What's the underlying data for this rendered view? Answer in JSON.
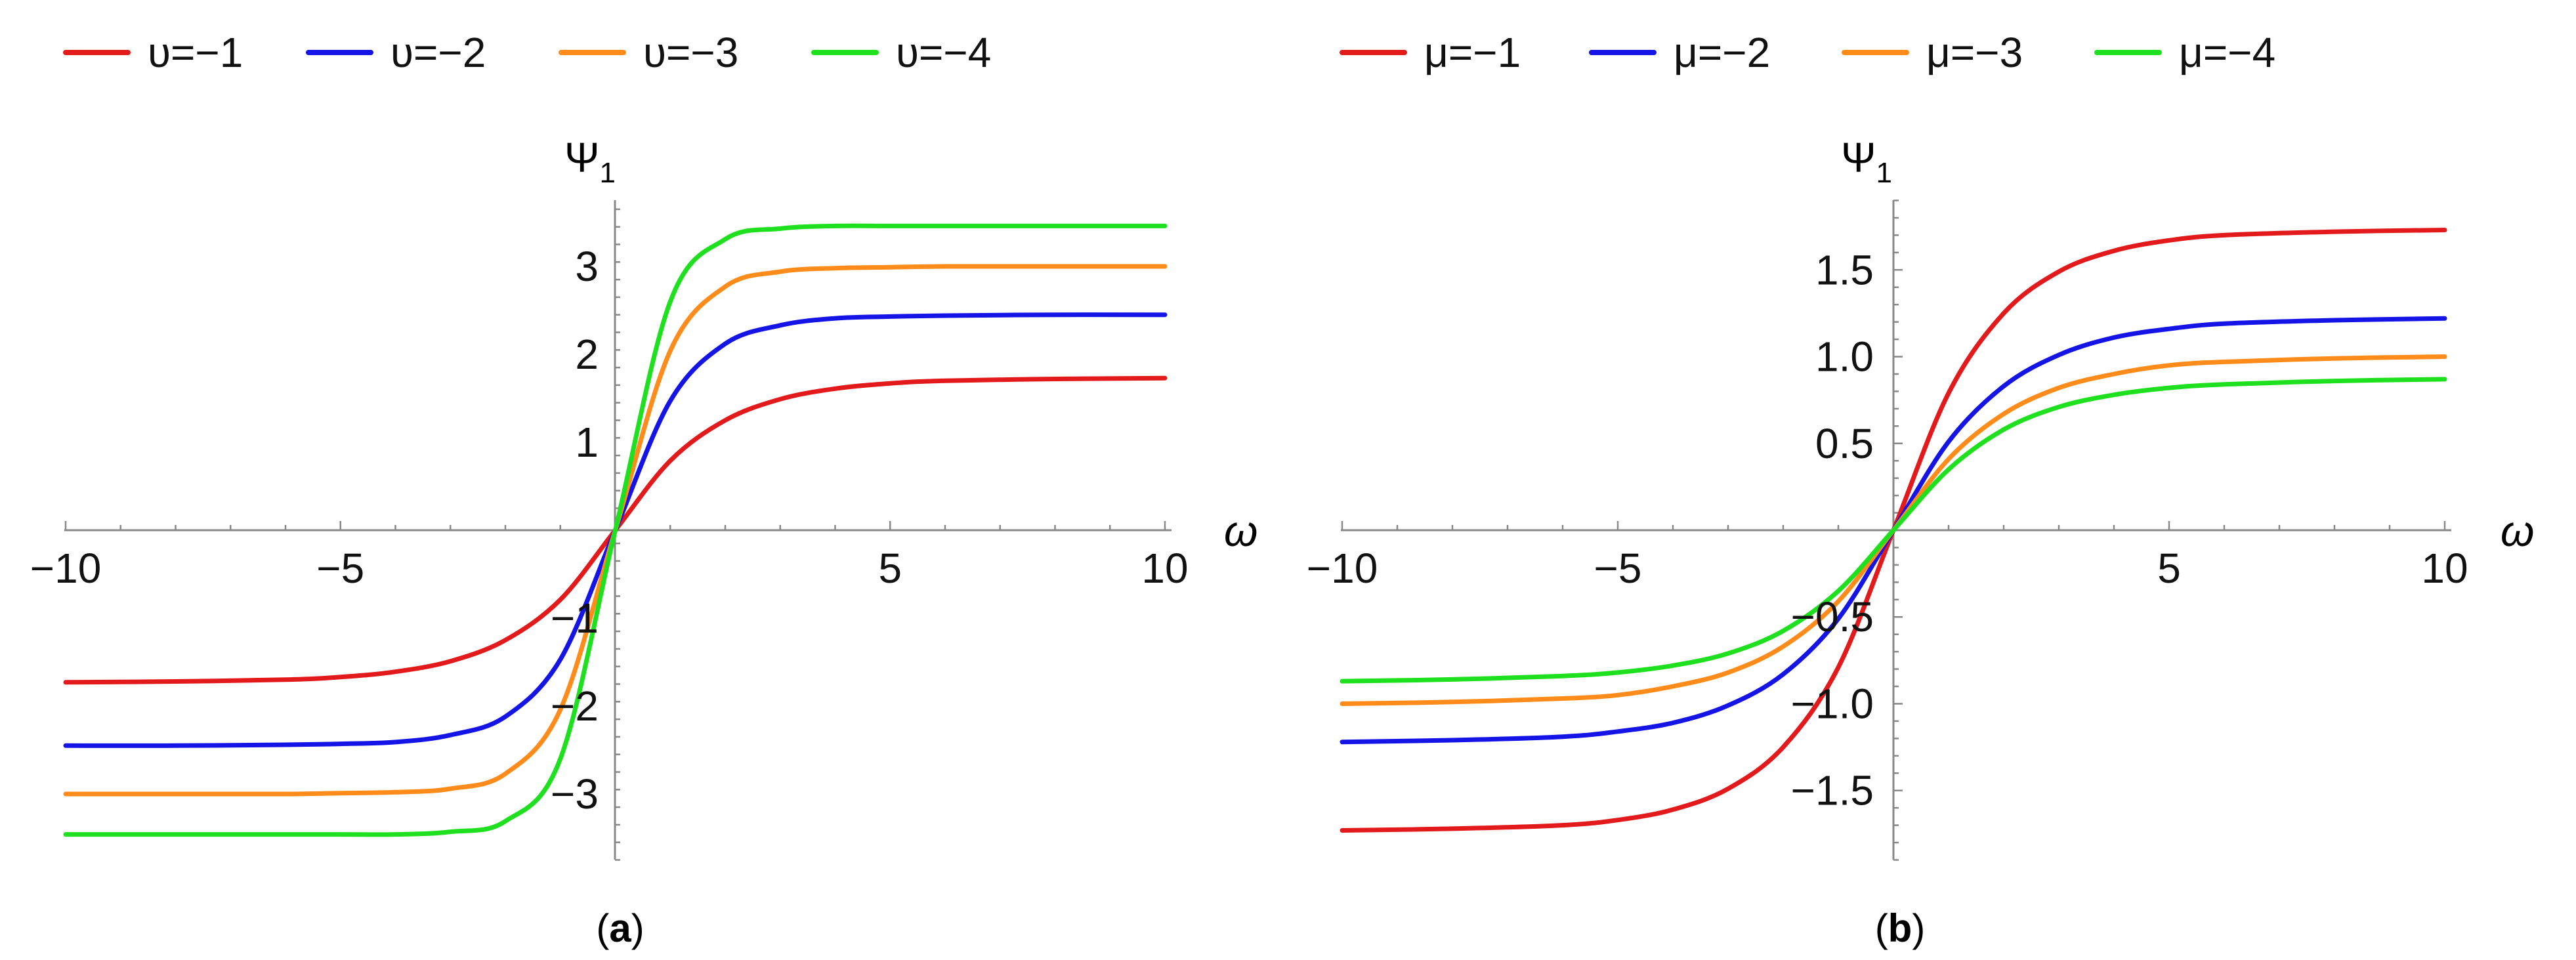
{
  "chart_data": [
    {
      "type": "line",
      "panel_label": "a",
      "legend_placement": "top",
      "xlabel": "ω",
      "ylabel": "Ψ",
      "ylabel_sub": "1",
      "xlim": [
        -10,
        10
      ],
      "ylim": [
        -3.75,
        3.75
      ],
      "xticks": [
        -10,
        -5,
        5,
        10
      ],
      "xtick_labels": [
        "−10",
        "−5",
        "5",
        "10"
      ],
      "yticks": [
        -3,
        -2,
        -1,
        1,
        2,
        3
      ],
      "ytick_labels": [
        "−3",
        "−2",
        "−1",
        "1",
        "2",
        "3"
      ],
      "grid": false,
      "x": [
        -10,
        -8,
        -6,
        -5,
        -4,
        -3,
        -2,
        -1,
        0,
        1,
        2,
        3,
        4,
        5,
        6,
        8,
        10
      ],
      "series": [
        {
          "name": "υ=−1",
          "color": "#e31a1c",
          "values": [
            -1.73,
            -1.72,
            -1.7,
            -1.67,
            -1.61,
            -1.49,
            -1.25,
            -0.79,
            0,
            0.79,
            1.25,
            1.49,
            1.61,
            1.67,
            1.7,
            1.72,
            1.73
          ]
        },
        {
          "name": "υ=−2",
          "color": "#1414e6",
          "values": [
            -2.45,
            -2.45,
            -2.44,
            -2.43,
            -2.41,
            -2.33,
            -2.12,
            -1.47,
            0,
            1.47,
            2.12,
            2.33,
            2.41,
            2.43,
            2.44,
            2.45,
            2.45
          ]
        },
        {
          "name": "υ=−3",
          "color": "#ff8c1a",
          "values": [
            -3.0,
            -3.0,
            -3.0,
            -2.99,
            -2.98,
            -2.94,
            -2.77,
            -2.04,
            0,
            2.04,
            2.77,
            2.94,
            2.98,
            2.99,
            3.0,
            3.0,
            3.0
          ]
        },
        {
          "name": "υ=−4",
          "color": "#1fe01f",
          "values": [
            -3.46,
            -3.46,
            -3.46,
            -3.46,
            -3.46,
            -3.43,
            -3.31,
            -2.6,
            0,
            2.6,
            3.31,
            3.43,
            3.46,
            3.46,
            3.46,
            3.46,
            3.46
          ]
        }
      ]
    },
    {
      "type": "line",
      "panel_label": "b",
      "legend_placement": "top",
      "xlabel": "ω",
      "ylabel": "Ψ",
      "ylabel_sub": "1",
      "xlim": [
        -10,
        10
      ],
      "ylim": [
        -1.9,
        1.9
      ],
      "xticks": [
        -10,
        -5,
        5,
        10
      ],
      "xtick_labels": [
        "−10",
        "−5",
        "5",
        "10"
      ],
      "yticks": [
        -1.5,
        -1.0,
        -0.5,
        0.5,
        1.0,
        1.5
      ],
      "ytick_labels": [
        "−1.5",
        "−1.0",
        "−0.5",
        "0.5",
        "1.0",
        "1.5"
      ],
      "grid": false,
      "x": [
        -10,
        -8,
        -6,
        -5,
        -4,
        -3,
        -2,
        -1,
        0,
        1,
        2,
        3,
        4,
        5,
        6,
        8,
        10
      ],
      "series": [
        {
          "name": "μ=−1",
          "color": "#e31a1c",
          "values": [
            -1.73,
            -1.72,
            -1.7,
            -1.67,
            -1.61,
            -1.49,
            -1.25,
            -0.79,
            0,
            0.79,
            1.25,
            1.49,
            1.61,
            1.67,
            1.7,
            1.72,
            1.73
          ]
        },
        {
          "name": "μ=−2",
          "color": "#1414e6",
          "values": [
            -1.22,
            -1.21,
            -1.19,
            -1.16,
            -1.11,
            -1.01,
            -0.83,
            -0.51,
            0,
            0.51,
            0.83,
            1.01,
            1.11,
            1.16,
            1.19,
            1.21,
            1.22
          ]
        },
        {
          "name": "μ=−3",
          "color": "#ff8c1a",
          "values": [
            -1.0,
            -0.99,
            -0.97,
            -0.95,
            -0.9,
            -0.82,
            -0.67,
            -0.41,
            0,
            0.41,
            0.67,
            0.82,
            0.9,
            0.95,
            0.97,
            0.99,
            1.0
          ]
        },
        {
          "name": "μ=−4",
          "color": "#1fe01f",
          "values": [
            -0.87,
            -0.86,
            -0.84,
            -0.82,
            -0.78,
            -0.71,
            -0.58,
            -0.35,
            0,
            0.35,
            0.58,
            0.71,
            0.78,
            0.82,
            0.84,
            0.86,
            0.87
          ]
        }
      ]
    }
  ],
  "captions": {
    "a": {
      "open": "(",
      "letter": "a",
      "close": ")"
    },
    "b": {
      "open": "(",
      "letter": "b",
      "close": ")"
    }
  }
}
